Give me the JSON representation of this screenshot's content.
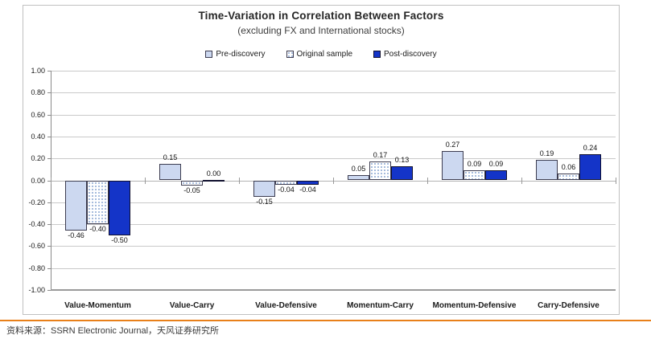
{
  "header": {
    "title": "Time-Variation in Correlation Between Factors",
    "subtitle": "(excluding FX and International stocks)"
  },
  "chart_data": {
    "type": "bar",
    "title": "Time-Variation in Correlation Between Factors",
    "subtitle": "(excluding FX and International stocks)",
    "categories": [
      "Value-Momentum",
      "Value-Carry",
      "Value-Defensive",
      "Momentum-Carry",
      "Momentum-Defensive",
      "Carry-Defensive"
    ],
    "series": [
      {
        "name": "Pre-discovery",
        "style": "light",
        "color": "#ccd8f0",
        "values": [
          -0.46,
          0.15,
          -0.15,
          0.05,
          0.27,
          0.19
        ]
      },
      {
        "name": "Original sample",
        "style": "dotted",
        "color": "#ffffff",
        "dot_color": "#9fb6da",
        "values": [
          -0.4,
          -0.05,
          -0.04,
          0.17,
          0.09,
          0.06
        ]
      },
      {
        "name": "Post-discovery",
        "style": "solid",
        "color": "#1434c8",
        "values": [
          -0.5,
          0.0,
          -0.04,
          0.13,
          0.09,
          0.24
        ]
      }
    ],
    "ylim": [
      -1.0,
      1.0
    ],
    "ytick_labels": [
      "1.00",
      "0.80",
      "0.60",
      "0.40",
      "0.20",
      "0.00",
      "-0.20",
      "-0.40",
      "-0.60",
      "-0.80",
      "-1.00"
    ],
    "grid": true,
    "legend_position": "top",
    "value_labels": true,
    "value_label_format": "2dp"
  },
  "footer": {
    "source": "资料来源：SSRN Electronic Journal，天风证券研究所"
  },
  "colors": {
    "accent_divider": "#e8801a",
    "bar_border": "#3c3c50",
    "grid": "#c9c9c9",
    "axis": "#8c8c8c",
    "title_text": "#262626"
  }
}
